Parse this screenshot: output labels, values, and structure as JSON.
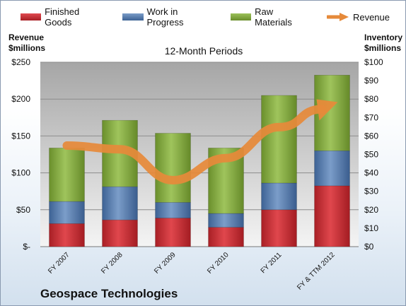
{
  "chart_data": {
    "type": "bar",
    "stacked": true,
    "title": "12-Month Periods",
    "categories": [
      "FY 2007",
      "FY 2008",
      "FY 2009",
      "FY 2010",
      "FY 2011",
      "FY & TTM 2012"
    ],
    "series": [
      {
        "name": "Finished Goods",
        "axis": "right",
        "color": "#c0272d",
        "values": [
          12.5,
          14.5,
          15.5,
          10.5,
          20,
          33
        ]
      },
      {
        "name": "Work in Progress",
        "axis": "right",
        "color": "#4f76a8",
        "values": [
          12,
          18,
          8.5,
          7.5,
          14.5,
          19
        ]
      },
      {
        "name": "Raw Materials",
        "axis": "right",
        "color": "#7ea33d",
        "values": [
          29,
          36,
          37.5,
          35.5,
          47.5,
          41
        ]
      },
      {
        "name": "Revenue",
        "axis": "left",
        "type": "line",
        "color": "#e68a3a",
        "values": [
          137,
          132,
          90,
          120,
          162,
          192
        ]
      }
    ],
    "left_axis": {
      "label": "Revenue\n$millions",
      "range": [
        0,
        250
      ],
      "ticks": [
        "$-",
        "$50",
        "$100",
        "$150",
        "$200",
        "$250"
      ]
    },
    "right_axis": {
      "label": "Inventory\n$millions",
      "range": [
        0,
        100
      ],
      "ticks": [
        "$0",
        "$10",
        "$20",
        "$30",
        "$40",
        "$50",
        "$60",
        "$70",
        "$80",
        "$90",
        "$100"
      ]
    },
    "legend_position": "top",
    "grid": true,
    "footer": "Geospace Technologies"
  }
}
